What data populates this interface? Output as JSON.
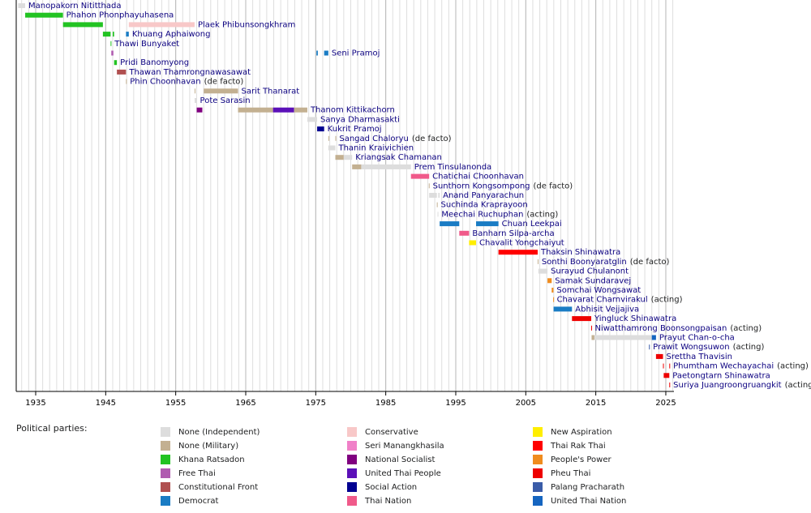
{
  "chart_data": {
    "type": "timeline",
    "xlim": [
      1932,
      2026
    ],
    "xticks": [
      1935,
      1945,
      1955,
      1965,
      1975,
      1985,
      1995,
      2005,
      2015,
      2025
    ],
    "grid": true,
    "legend_title": "Political parties:",
    "parties": [
      {
        "name": "None (Independent)",
        "color": "#dddddd"
      },
      {
        "name": "None (Military)",
        "color": "#c3b091"
      },
      {
        "name": "Khana Ratsadon",
        "color": "#22c322"
      },
      {
        "name": "Free Thai",
        "color": "#b05cb0"
      },
      {
        "name": "Constitutional Front",
        "color": "#b05050"
      },
      {
        "name": "Democrat",
        "color": "#1a7cc4"
      },
      {
        "name": "Conservative",
        "color": "#f8c8c8"
      },
      {
        "name": "Seri Manangkhasila",
        "color": "#f080c8"
      },
      {
        "name": "National Socialist",
        "color": "#800080"
      },
      {
        "name": "United Thai People",
        "color": "#5b10b8"
      },
      {
        "name": "Social Action",
        "color": "#000090"
      },
      {
        "name": "Thai Nation",
        "color": "#f05a8a"
      },
      {
        "name": "New Aspiration",
        "color": "#ffee00"
      },
      {
        "name": "Thai Rak Thai",
        "color": "#ff0000"
      },
      {
        "name": "People's Power",
        "color": "#f08c1e"
      },
      {
        "name": "Pheu Thai",
        "color": "#ee0000"
      },
      {
        "name": "Palang Pracharath",
        "color": "#3a5ca8"
      },
      {
        "name": "United Thai Nation",
        "color": "#1565c0"
      }
    ],
    "rows": [
      {
        "name": "Manopakorn Nititthada",
        "terms": [
          {
            "start": 1932.5,
            "end": 1933.5,
            "party": 0
          }
        ]
      },
      {
        "name": "Phahon Phonphayuhasena",
        "terms": [
          {
            "start": 1933.5,
            "end": 1938.9,
            "party": 2
          }
        ]
      },
      {
        "name": "Plaek Phibunsongkhram",
        "terms": [
          {
            "start": 1938.9,
            "end": 1944.6,
            "party": 2
          },
          {
            "start": 1948.3,
            "end": 1957.7,
            "party": 6
          }
        ]
      },
      {
        "name": "Khuang Aphaiwong",
        "terms": [
          {
            "start": 1944.6,
            "end": 1945.7,
            "party": 2
          },
          {
            "start": 1946.0,
            "end": 1946.2,
            "party": 2
          },
          {
            "start": 1947.9,
            "end": 1948.3,
            "party": 5
          }
        ]
      },
      {
        "name": "Thawi Bunyaket",
        "terms": [
          {
            "start": 1945.7,
            "end": 1945.8,
            "party": 2
          }
        ]
      },
      {
        "name": "Seni Pramoj",
        "terms": [
          {
            "start": 1945.8,
            "end": 1946.1,
            "party": 3
          },
          {
            "start": 1975.1,
            "end": 1975.3,
            "party": 5
          },
          {
            "start": 1976.2,
            "end": 1976.8,
            "party": 5
          }
        ]
      },
      {
        "name": "Pridi Banomyong",
        "terms": [
          {
            "start": 1946.2,
            "end": 1946.6,
            "party": 2
          }
        ]
      },
      {
        "name": "Thawan Thamrongnawasawat",
        "terms": [
          {
            "start": 1946.6,
            "end": 1947.9,
            "party": 4
          }
        ]
      },
      {
        "name": "Phin Choonhavan",
        "note": "(de facto)",
        "terms": [
          {
            "start": 1947.9,
            "end": 1948.0,
            "party": 1
          }
        ]
      },
      {
        "name": "Sarit Thanarat",
        "terms": [
          {
            "start": 1957.7,
            "end": 1957.8,
            "party": 1
          },
          {
            "start": 1959.0,
            "end": 1963.9,
            "party": 1
          }
        ]
      },
      {
        "name": "Pote Sarasin",
        "terms": [
          {
            "start": 1957.7,
            "end": 1958.0,
            "party": 0
          }
        ]
      },
      {
        "name": "Thanom Kittikachorn",
        "terms": [
          {
            "start": 1958.0,
            "end": 1958.8,
            "party": 8
          },
          {
            "start": 1963.9,
            "end": 1968.9,
            "party": 1
          },
          {
            "start": 1968.9,
            "end": 1971.9,
            "party": 9
          },
          {
            "start": 1971.9,
            "end": 1973.8,
            "party": 1
          }
        ]
      },
      {
        "name": "Sanya Dharmasakti",
        "terms": [
          {
            "start": 1973.8,
            "end": 1975.2,
            "party": 0
          }
        ]
      },
      {
        "name": "Kukrit Pramoj",
        "terms": [
          {
            "start": 1975.2,
            "end": 1976.2,
            "party": 10
          }
        ]
      },
      {
        "name": "Sangad Chaloryu",
        "note": "(de facto)",
        "terms": [
          {
            "start": 1976.8,
            "end": 1976.9,
            "party": 1
          },
          {
            "start": 1977.8,
            "end": 1977.9,
            "party": 1
          }
        ]
      },
      {
        "name": "Thanin Kraivichien",
        "terms": [
          {
            "start": 1976.8,
            "end": 1977.8,
            "party": 0
          }
        ]
      },
      {
        "name": "Kriangsak Chamanan",
        "terms": [
          {
            "start": 1977.8,
            "end": 1979.0,
            "party": 1
          },
          {
            "start": 1979.0,
            "end": 1980.2,
            "party": 0
          }
        ]
      },
      {
        "name": "Prem Tinsulanonda",
        "terms": [
          {
            "start": 1980.2,
            "end": 1981.5,
            "party": 1
          },
          {
            "start": 1981.5,
            "end": 1988.6,
            "party": 0
          }
        ]
      },
      {
        "name": "Chatichai Choonhavan",
        "terms": [
          {
            "start": 1988.6,
            "end": 1991.2,
            "party": 11
          }
        ]
      },
      {
        "name": "Sunthorn Kongsompong",
        "note": "(de facto)",
        "terms": [
          {
            "start": 1991.15,
            "end": 1991.25,
            "party": 1
          }
        ]
      },
      {
        "name": "Anand Panyarachun",
        "terms": [
          {
            "start": 1991.2,
            "end": 1992.3,
            "party": 0
          },
          {
            "start": 1992.5,
            "end": 1992.7,
            "party": 0
          }
        ]
      },
      {
        "name": "Suchinda Kraprayoon",
        "terms": [
          {
            "start": 1992.3,
            "end": 1992.4,
            "party": 1
          }
        ]
      },
      {
        "name": "Meechai Ruchuphan",
        "note": "(acting)",
        "terms": [
          {
            "start": 1992.4,
            "end": 1992.5,
            "party": 0
          }
        ]
      },
      {
        "name": "Chuan Leekpai",
        "terms": [
          {
            "start": 1992.7,
            "end": 1995.5,
            "party": 5
          },
          {
            "start": 1997.9,
            "end": 2001.1,
            "party": 5
          }
        ]
      },
      {
        "name": "Banharn Silpa-archa",
        "terms": [
          {
            "start": 1995.5,
            "end": 1996.9,
            "party": 11
          }
        ]
      },
      {
        "name": "Chavalit Yongchaiyut",
        "terms": [
          {
            "start": 1996.9,
            "end": 1997.9,
            "party": 12
          }
        ]
      },
      {
        "name": "Thaksin Shinawatra",
        "terms": [
          {
            "start": 2001.1,
            "end": 2006.7,
            "party": 13
          }
        ]
      },
      {
        "name": "Sonthi Boonyaratglin",
        "note": "(de facto)",
        "terms": [
          {
            "start": 2006.7,
            "end": 2006.8,
            "party": 1
          }
        ]
      },
      {
        "name": "Surayud Chulanont",
        "terms": [
          {
            "start": 2006.8,
            "end": 2008.1,
            "party": 0
          }
        ]
      },
      {
        "name": "Samak Sundaravej",
        "terms": [
          {
            "start": 2008.1,
            "end": 2008.7,
            "party": 14
          }
        ]
      },
      {
        "name": "Somchai Wongsawat",
        "terms": [
          {
            "start": 2008.7,
            "end": 2008.95,
            "party": 14
          }
        ]
      },
      {
        "name": "Chavarat Charnvirakul",
        "note": "(acting)",
        "terms": [
          {
            "start": 2008.92,
            "end": 2008.97,
            "party": 14
          }
        ]
      },
      {
        "name": "Abhisit Vejjajiva",
        "terms": [
          {
            "start": 2008.97,
            "end": 2011.6,
            "party": 5
          }
        ]
      },
      {
        "name": "Yingluck Shinawatra",
        "terms": [
          {
            "start": 2011.6,
            "end": 2014.35,
            "party": 15
          }
        ]
      },
      {
        "name": "Niwatthamrong Boonsongpaisan",
        "note": "(acting)",
        "terms": [
          {
            "start": 2014.35,
            "end": 2014.4,
            "party": 15
          }
        ]
      },
      {
        "name": "Prayut Chan-o-cha",
        "terms": [
          {
            "start": 2014.4,
            "end": 2014.8,
            "party": 1
          },
          {
            "start": 2014.8,
            "end": 2023.0,
            "party": 0
          },
          {
            "start": 2023.0,
            "end": 2023.6,
            "party": 17
          }
        ]
      },
      {
        "name": "Prawit Wongsuwon",
        "note": "(acting)",
        "terms": [
          {
            "start": 2022.6,
            "end": 2022.7,
            "party": 16
          }
        ]
      },
      {
        "name": "Srettha Thavisin",
        "terms": [
          {
            "start": 2023.6,
            "end": 2024.6,
            "party": 15
          }
        ]
      },
      {
        "name": "Phumtham Wechayachai",
        "note": "(acting)",
        "terms": [
          {
            "start": 2024.6,
            "end": 2024.7,
            "party": 15
          },
          {
            "start": 2025.5,
            "end": 2025.6,
            "party": 15
          }
        ]
      },
      {
        "name": "Paetongtarn Shinawatra",
        "terms": [
          {
            "start": 2024.7,
            "end": 2025.5,
            "party": 15
          }
        ]
      },
      {
        "name": "Suriya Juangroongruangkit",
        "note": "(acting)",
        "terms": [
          {
            "start": 2025.5,
            "end": 2025.6,
            "party": 15
          }
        ]
      }
    ]
  }
}
